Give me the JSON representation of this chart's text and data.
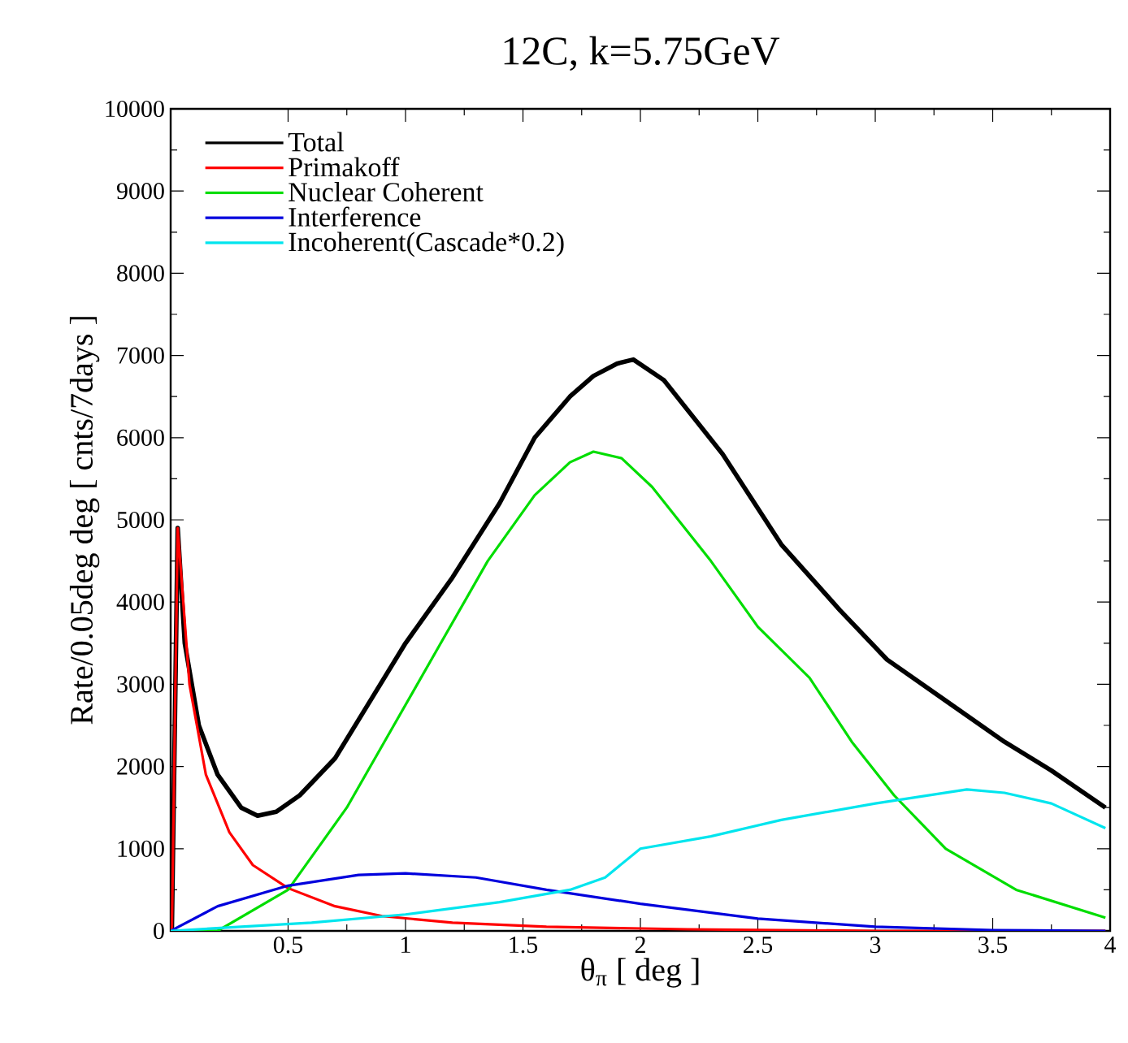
{
  "chart_data": {
    "type": "line",
    "title": "12C, k=5.75GeV",
    "xlabel": "θ$_{π}$ [ deg ]",
    "ylabel": "Rate/0.05deg deg [ cnts/7days ]",
    "xlim": [
      0,
      4
    ],
    "xticks": [
      0.5,
      1,
      1.5,
      2,
      2.5,
      3,
      3.5,
      4
    ],
    "ylim": [
      0,
      10000
    ],
    "yticks": [
      0,
      1000,
      2000,
      3000,
      4000,
      5000,
      6000,
      7000,
      8000,
      9000,
      10000
    ],
    "legend": "top left",
    "grid": false,
    "line_style": "solid",
    "series": [
      {
        "name": "Total",
        "color": "#000000",
        "x": [
          0.005,
          0.03,
          0.06,
          0.12,
          0.2,
          0.3,
          0.37,
          0.45,
          0.55,
          0.7,
          0.85,
          1.0,
          1.2,
          1.4,
          1.55,
          1.7,
          1.8,
          1.9,
          1.97,
          2.1,
          2.35,
          2.6,
          2.85,
          3.05,
          3.3,
          3.55,
          3.75,
          3.98
        ],
        "values": [
          0,
          4900,
          3500,
          2500,
          1900,
          1500,
          1400,
          1450,
          1650,
          2100,
          2800,
          3500,
          4300,
          5200,
          6000,
          6500,
          6750,
          6900,
          6950,
          6700,
          5800,
          4700,
          3900,
          3300,
          2800,
          2300,
          1950,
          1500
        ]
      },
      {
        "name": "Primakoff",
        "color": "#ff0000",
        "x": [
          0.005,
          0.03,
          0.08,
          0.15,
          0.25,
          0.35,
          0.5,
          0.7,
          0.9,
          1.2,
          1.6,
          2.2,
          3.0,
          3.98
        ],
        "values": [
          0,
          4900,
          3000,
          1900,
          1200,
          800,
          520,
          300,
          180,
          100,
          50,
          20,
          0,
          0
        ]
      },
      {
        "name": "Nuclear Coherent",
        "color": "#00dd00",
        "x": [
          0,
          0.2,
          0.5,
          0.75,
          0.95,
          1.15,
          1.35,
          1.55,
          1.7,
          1.8,
          1.92,
          2.05,
          2.3,
          2.5,
          2.72,
          2.9,
          3.08,
          3.3,
          3.6,
          3.98
        ],
        "values": [
          0,
          0,
          500,
          1500,
          2500,
          3500,
          4500,
          5300,
          5700,
          5830,
          5750,
          5400,
          4500,
          3700,
          3080,
          2300,
          1650,
          1000,
          500,
          160
        ]
      },
      {
        "name": "Interference",
        "color": "#0000dd",
        "x": [
          0,
          0.2,
          0.5,
          0.8,
          1.0,
          1.3,
          1.6,
          2.0,
          2.5,
          3.0,
          3.5,
          3.98
        ],
        "values": [
          0,
          300,
          550,
          680,
          700,
          650,
          500,
          330,
          150,
          50,
          10,
          0
        ]
      },
      {
        "name": "Incoherent(Cascade*0.2)",
        "color": "#00e5ee",
        "x": [
          0,
          0.3,
          0.6,
          1.0,
          1.4,
          1.7,
          1.85,
          2.0,
          2.3,
          2.6,
          3.0,
          3.39,
          3.55,
          3.75,
          3.98
        ],
        "values": [
          0,
          50,
          100,
          200,
          350,
          500,
          650,
          1000,
          1150,
          1350,
          1550,
          1720,
          1680,
          1550,
          1250
        ]
      }
    ]
  }
}
